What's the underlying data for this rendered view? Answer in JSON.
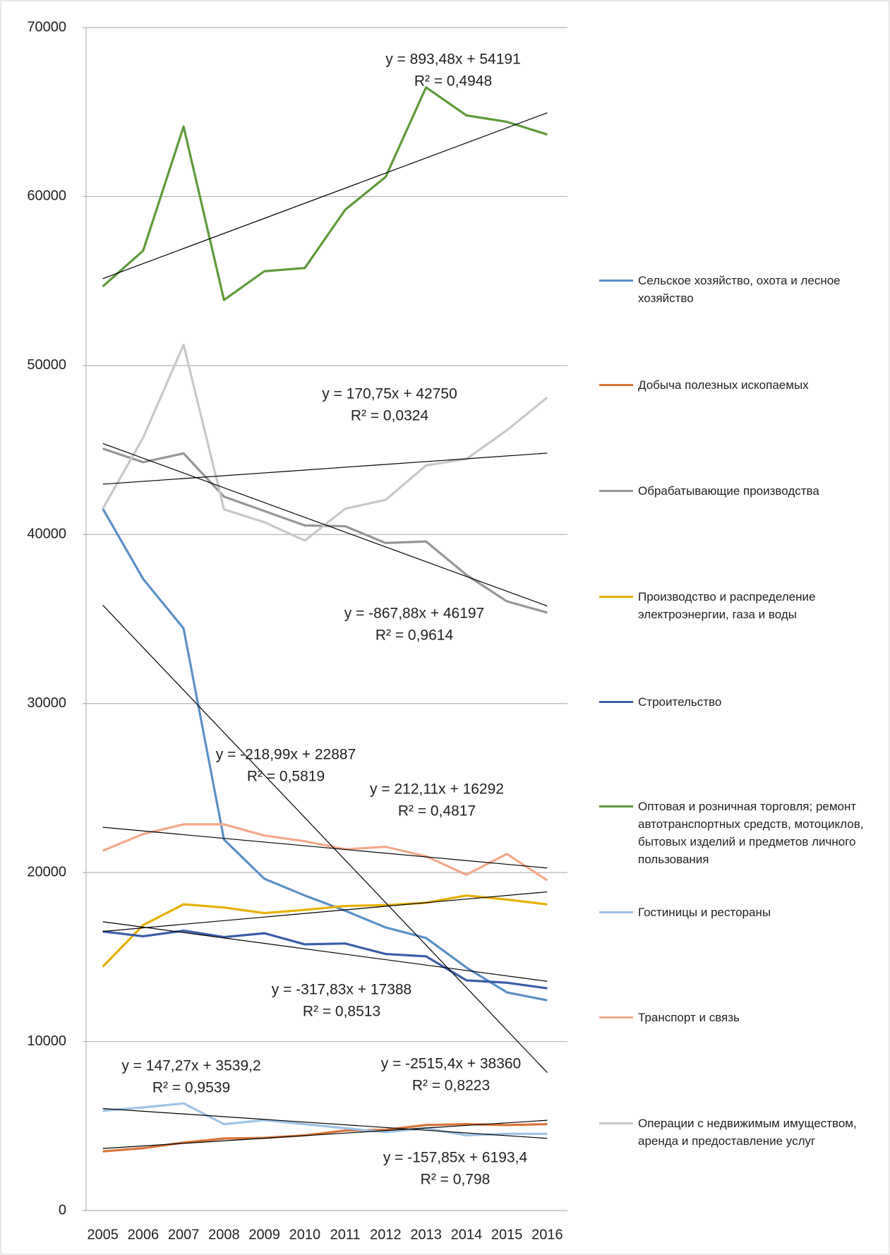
{
  "chart_data": {
    "type": "line",
    "categories": [
      "2005",
      "2006",
      "2007",
      "2008",
      "2009",
      "2010",
      "2011",
      "2012",
      "2013",
      "2014",
      "2015",
      "2016"
    ],
    "ylim": [
      0,
      70000
    ],
    "yticks": [
      0,
      10000,
      20000,
      30000,
      40000,
      50000,
      60000,
      70000
    ],
    "grid": true,
    "legend": "right",
    "series": [
      {
        "name": "Сельское хозяйство, охота и лесное хозяйство",
        "color": "#5b8fc7",
        "values": [
          41530,
          37370,
          34440,
          21950,
          19630,
          18640,
          17740,
          16750,
          16130,
          14380,
          12910,
          12440
        ],
        "trendline": {
          "equation": "y = -2515,4x + 38360",
          "r_squared": "R² = 0,8223"
        }
      },
      {
        "name": "Добыча полезных ископаемых",
        "color": "#d9733a",
        "values": [
          3500,
          3690,
          4020,
          4260,
          4300,
          4450,
          4730,
          4780,
          5060,
          5110,
          5060,
          5110
        ],
        "trendline": {
          "equation": "y = 147,27x + 3539,2",
          "r_squared": "R² = 0,9539"
        }
      },
      {
        "name": "Обрабатывающие производства",
        "color": "#969696",
        "values": [
          45080,
          44280,
          44800,
          42240,
          41390,
          40540,
          40490,
          39500,
          39590,
          37610,
          36050,
          35380
        ],
        "trendline": {
          "equation": "y = -867,88x + 46197",
          "r_squared": "R² = 0,9614"
        }
      },
      {
        "name": "Производство и распределение электроэнергии, газа и воды",
        "color": "#e6b000",
        "values": [
          14430,
          16890,
          18120,
          17930,
          17600,
          17790,
          18020,
          18070,
          18210,
          18640,
          18400,
          18120
        ],
        "trendline": {
          "equation": "y = 212,11x + 16292",
          "r_squared": "R² = 0,4817"
        }
      },
      {
        "name": "Строительство",
        "color": "#3a5ea8",
        "values": [
          16510,
          16230,
          16560,
          16180,
          16410,
          15750,
          15800,
          15180,
          15040,
          13620,
          13480,
          13150
        ],
        "trendline": {
          "equation": "y = -317,83x + 17388",
          "r_squared": "R² = 0,8513"
        }
      },
      {
        "name": "Оптовая и розничная торговля; ремонт автотранспортных средств, мотоциклов, бытовых изделий и предметов личного пользования",
        "color": "#5d9a3a",
        "values": [
          54680,
          56800,
          64140,
          53880,
          55580,
          55770,
          59220,
          61160,
          66460,
          64800,
          64420,
          63670
        ],
        "trendline": {
          "equation": "y = 893,48x + 54191",
          "r_squared": "R² = 0,4948"
        }
      },
      {
        "name": "Гостиницы и рестораны",
        "color": "#9dc3e6",
        "values": [
          5910,
          6100,
          6340,
          5110,
          5350,
          5110,
          4870,
          4640,
          4870,
          4450,
          4540,
          4540
        ],
        "trendline": {
          "equation": "y = -157,85x + 6193,4",
          "r_squared": "R² = 0,798"
        }
      },
      {
        "name": "Транспорт и связь",
        "color": "#f4a88a",
        "values": [
          21290,
          22280,
          22850,
          22850,
          22190,
          21850,
          21380,
          21520,
          20960,
          19870,
          21100,
          19540
        ],
        "trendline": {
          "equation": "y = -218,99x + 22887",
          "r_squared": "R² = 0,5819"
        }
      },
      {
        "name": "Операции с недвижимым имуществом, аренда и предоставление услуг",
        "color": "#c8c8c8",
        "values": [
          41530,
          45740,
          51230,
          41490,
          40730,
          39640,
          41530,
          42050,
          44090,
          44470,
          46170,
          48110
        ],
        "trendline": {
          "equation": "y = 170,75x + 42750",
          "r_squared": "R² = 0,0324"
        }
      }
    ]
  }
}
